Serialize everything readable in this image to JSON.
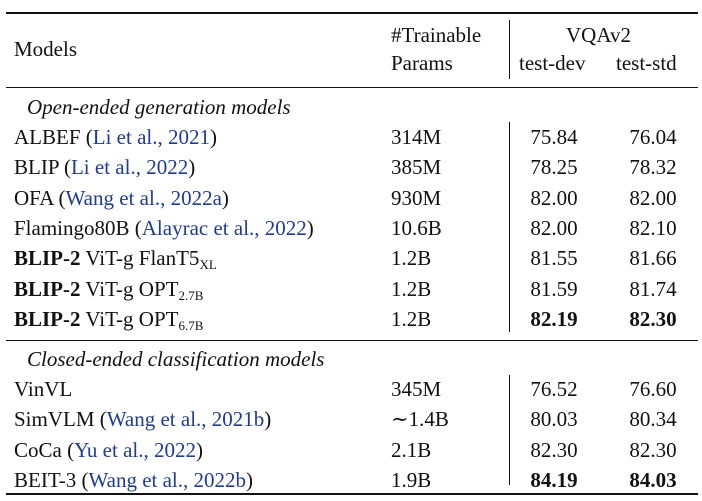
{
  "table": {
    "header": {
      "models": "Models",
      "params_line1": "#Trainable",
      "params_line2": "Params",
      "vqa": "VQAv2",
      "test_dev": "test-dev",
      "test_std": "test-std"
    },
    "sections": [
      {
        "title": "Open-ended generation models",
        "rows": [
          {
            "name": "ALBEF",
            "cite": "Li et al., 2021",
            "params": "314M",
            "dev": "75.84",
            "std": "76.04"
          },
          {
            "name": "BLIP",
            "cite": "Li et al., 2022",
            "params": "385M",
            "dev": "78.25",
            "std": "78.32"
          },
          {
            "name": "OFA",
            "cite": "Wang et al., 2022a",
            "params": "930M",
            "dev": "82.00",
            "std": "82.00"
          },
          {
            "name": "Flamingo80B",
            "cite": "Alayrac et al., 2022",
            "params": "10.6B",
            "dev": "82.00",
            "std": "82.10"
          },
          {
            "bold_name": "BLIP-2",
            "variant": "ViT-g FlanT5",
            "sub": "XL",
            "params": "1.2B",
            "dev": "81.55",
            "std": "81.66"
          },
          {
            "bold_name": "BLIP-2",
            "variant": "ViT-g OPT",
            "sub": "2.7B",
            "params": "1.2B",
            "dev": "81.59",
            "std": "81.74"
          },
          {
            "bold_name": "BLIP-2",
            "variant": "ViT-g OPT",
            "sub": "6.7B",
            "params": "1.2B",
            "dev": "82.19",
            "std": "82.30"
          }
        ]
      },
      {
        "title": "Closed-ended classification models",
        "rows": [
          {
            "name": "VinVL",
            "cite": "",
            "params": "345M",
            "dev": "76.52",
            "std": "76.60"
          },
          {
            "name": "SimVLM",
            "cite": "Wang et al., 2021b",
            "params": "∼1.4B",
            "dev": "80.03",
            "std": "80.34"
          },
          {
            "name": "CoCa",
            "cite": "Yu et al., 2022",
            "params": "2.1B",
            "dev": "82.30",
            "std": "82.30"
          },
          {
            "name": "BEIT-3",
            "cite": "Wang et al., 2022b",
            "params": "1.9B",
            "dev": "84.19",
            "std": "84.03"
          }
        ]
      }
    ],
    "colors": {
      "citation": "#1f3d8f",
      "text": "#111111"
    }
  }
}
